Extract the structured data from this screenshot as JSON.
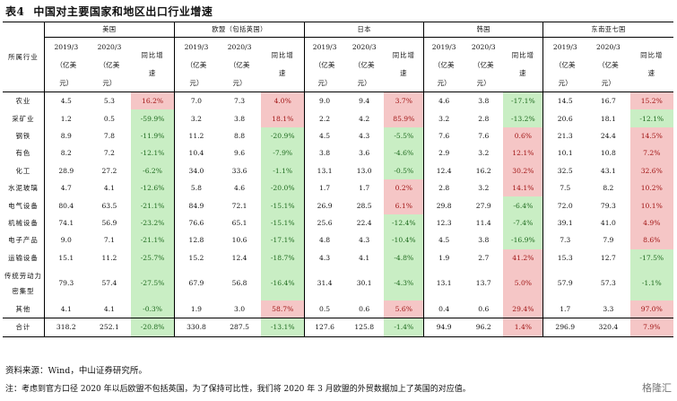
{
  "title": {
    "table_no": "表4",
    "text": "中国对主要国家和地区出口行业增速"
  },
  "header": {
    "sector": "所属行业",
    "regions": [
      "美国",
      "欧盟（包括英国）",
      "日本",
      "韩国",
      "东南亚七国"
    ],
    "year_2019": "2019/3",
    "year_2020": "2020/3",
    "unit_open": "（亿美",
    "unit_close": "元）",
    "yoy_a": "同比增",
    "yoy_b": "速"
  },
  "rows": [
    {
      "name": "农业",
      "v": [
        [
          "4.5",
          "5.3",
          "16.2%"
        ],
        [
          "7.0",
          "7.3",
          "4.0%"
        ],
        [
          "9.0",
          "9.4",
          "3.7%"
        ],
        [
          "4.6",
          "3.8",
          "-17.1%"
        ],
        [
          "14.5",
          "16.7",
          "15.2%"
        ]
      ]
    },
    {
      "name": "采矿业",
      "v": [
        [
          "1.2",
          "0.5",
          "-59.9%"
        ],
        [
          "3.2",
          "3.8",
          "18.1%"
        ],
        [
          "2.2",
          "4.2",
          "85.9%"
        ],
        [
          "3.2",
          "2.8",
          "-13.2%"
        ],
        [
          "20.6",
          "18.1",
          "-12.1%"
        ]
      ]
    },
    {
      "name": "钢铁",
      "v": [
        [
          "8.9",
          "7.8",
          "-11.9%"
        ],
        [
          "11.2",
          "8.8",
          "-20.9%"
        ],
        [
          "4.5",
          "4.3",
          "-5.5%"
        ],
        [
          "7.6",
          "7.6",
          "0.6%"
        ],
        [
          "21.3",
          "24.4",
          "14.5%"
        ]
      ]
    },
    {
      "name": "有色",
      "v": [
        [
          "8.2",
          "7.2",
          "-12.1%"
        ],
        [
          "10.4",
          "9.6",
          "-7.9%"
        ],
        [
          "3.8",
          "3.6",
          "-4.6%"
        ],
        [
          "2.9",
          "3.2",
          "12.1%"
        ],
        [
          "10.1",
          "10.8",
          "7.2%"
        ]
      ]
    },
    {
      "name": "化工",
      "v": [
        [
          "28.9",
          "27.2",
          "-6.2%"
        ],
        [
          "34.0",
          "33.6",
          "-1.1%"
        ],
        [
          "13.1",
          "13.0",
          "-0.5%"
        ],
        [
          "12.4",
          "16.2",
          "30.2%"
        ],
        [
          "32.5",
          "43.1",
          "32.6%"
        ]
      ]
    },
    {
      "name": "水泥玻璃",
      "v": [
        [
          "4.7",
          "4.1",
          "-12.6%"
        ],
        [
          "5.8",
          "4.6",
          "-20.0%"
        ],
        [
          "1.7",
          "1.7",
          "0.2%"
        ],
        [
          "2.8",
          "3.2",
          "14.1%"
        ],
        [
          "7.5",
          "8.2",
          "10.2%"
        ]
      ]
    },
    {
      "name": "电气设备",
      "v": [
        [
          "80.4",
          "63.5",
          "-21.1%"
        ],
        [
          "84.9",
          "72.1",
          "-15.1%"
        ],
        [
          "26.9",
          "28.5",
          "6.1%"
        ],
        [
          "29.8",
          "27.9",
          "-6.4%"
        ],
        [
          "72.0",
          "79.3",
          "10.1%"
        ]
      ]
    },
    {
      "name": "机械设备",
      "v": [
        [
          "74.1",
          "56.9",
          "-23.2%"
        ],
        [
          "76.6",
          "65.1",
          "-15.1%"
        ],
        [
          "25.6",
          "22.4",
          "-12.4%"
        ],
        [
          "12.3",
          "11.4",
          "-7.4%"
        ],
        [
          "39.1",
          "41.0",
          "4.9%"
        ]
      ]
    },
    {
      "name": "电子产品",
      "v": [
        [
          "9.0",
          "7.1",
          "-21.1%"
        ],
        [
          "12.8",
          "10.6",
          "-17.1%"
        ],
        [
          "4.8",
          "4.3",
          "-10.4%"
        ],
        [
          "4.5",
          "3.8",
          "-16.9%"
        ],
        [
          "7.3",
          "7.9",
          "8.6%"
        ]
      ]
    },
    {
      "name": "运输设备",
      "v": [
        [
          "15.1",
          "11.2",
          "-25.7%"
        ],
        [
          "15.2",
          "12.4",
          "-18.7%"
        ],
        [
          "4.3",
          "4.1",
          "-4.8%"
        ],
        [
          "1.9",
          "2.7",
          "41.2%"
        ],
        [
          "15.3",
          "12.7",
          "-17.5%"
        ]
      ]
    },
    {
      "name": "传统劳动力密集型",
      "tall": true,
      "v": [
        [
          "79.3",
          "57.4",
          "-27.5%"
        ],
        [
          "67.9",
          "56.8",
          "-16.4%"
        ],
        [
          "31.4",
          "30.1",
          "-4.3%"
        ],
        [
          "13.1",
          "13.7",
          "5.0%"
        ],
        [
          "57.9",
          "57.3",
          "-1.1%"
        ]
      ]
    },
    {
      "name": "其他",
      "v": [
        [
          "4.1",
          "4.1",
          "-0.3%"
        ],
        [
          "1.9",
          "3.0",
          "58.7%"
        ],
        [
          "0.5",
          "0.6",
          "5.6%"
        ],
        [
          "0.4",
          "0.6",
          "29.4%"
        ],
        [
          "1.7",
          "3.3",
          "97.0%"
        ]
      ]
    },
    {
      "name": "合计",
      "total": true,
      "v": [
        [
          "318.2",
          "252.1",
          "-20.8%"
        ],
        [
          "330.8",
          "287.5",
          "-13.1%"
        ],
        [
          "127.6",
          "125.8",
          "-1.4%"
        ],
        [
          "94.9",
          "96.2",
          "1.4%"
        ],
        [
          "296.9",
          "320.4",
          "7.9%"
        ]
      ]
    }
  ],
  "footnotes": {
    "source": "资料来源：Wind，中山证券研究所。",
    "note": "注：考虑到官方口径 2020 年以后欧盟不包括英国，为了保持可比性，我们将 2020 年 3 月欧盟的外贸数据加上了英国的对应值。"
  },
  "watermark": "格隆汇",
  "colors": {
    "positive_bg": "#f5c6c6",
    "negative_bg": "#c9eec4"
  }
}
